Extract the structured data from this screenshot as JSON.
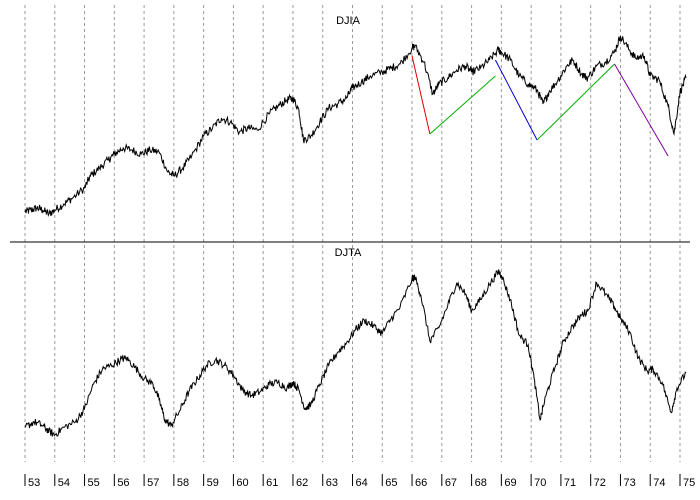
{
  "chart_data": [
    {
      "type": "line",
      "title": "DJIA",
      "x_unit": "year",
      "xlim": [
        1953,
        1975
      ],
      "ylim": [
        0,
        100
      ],
      "series": [
        {
          "values": [
            [
              1953.0,
              9
            ],
            [
              1953.2,
              10
            ],
            [
              1953.4,
              11
            ],
            [
              1953.6,
              10
            ],
            [
              1953.8,
              8
            ],
            [
              1954.0,
              10
            ],
            [
              1954.3,
              13
            ],
            [
              1954.6,
              16
            ],
            [
              1955.0,
              21
            ],
            [
              1955.2,
              27
            ],
            [
              1955.5,
              31
            ],
            [
              1955.8,
              35
            ],
            [
              1956.0,
              38
            ],
            [
              1956.3,
              41
            ],
            [
              1956.6,
              40
            ],
            [
              1956.9,
              38
            ],
            [
              1957.2,
              40
            ],
            [
              1957.5,
              39
            ],
            [
              1957.8,
              29
            ],
            [
              1958.0,
              27
            ],
            [
              1958.3,
              31
            ],
            [
              1958.6,
              37
            ],
            [
              1959.0,
              47
            ],
            [
              1959.3,
              51
            ],
            [
              1959.6,
              56
            ],
            [
              1959.9,
              54
            ],
            [
              1960.2,
              49
            ],
            [
              1960.5,
              51
            ],
            [
              1960.8,
              50
            ],
            [
              1961.2,
              58
            ],
            [
              1961.5,
              62
            ],
            [
              1961.8,
              65
            ],
            [
              1962.0,
              66
            ],
            [
              1962.2,
              60
            ],
            [
              1962.35,
              45
            ],
            [
              1962.6,
              47
            ],
            [
              1962.9,
              54
            ],
            [
              1963.2,
              61
            ],
            [
              1963.5,
              63
            ],
            [
              1963.8,
              66
            ],
            [
              1964.0,
              71
            ],
            [
              1964.3,
              74
            ],
            [
              1964.6,
              77
            ],
            [
              1965.0,
              79
            ],
            [
              1965.3,
              81
            ],
            [
              1965.6,
              83
            ],
            [
              1966.0,
              91
            ],
            [
              1966.1,
              92
            ],
            [
              1966.4,
              84
            ],
            [
              1966.7,
              68
            ],
            [
              1966.9,
              73
            ],
            [
              1967.2,
              76
            ],
            [
              1967.5,
              80
            ],
            [
              1967.8,
              82
            ],
            [
              1968.0,
              79
            ],
            [
              1968.3,
              81
            ],
            [
              1968.6,
              85
            ],
            [
              1968.9,
              90
            ],
            [
              1969.0,
              89
            ],
            [
              1969.3,
              85
            ],
            [
              1969.6,
              77
            ],
            [
              1969.9,
              73
            ],
            [
              1970.2,
              70
            ],
            [
              1970.4,
              63
            ],
            [
              1970.6,
              69
            ],
            [
              1970.9,
              75
            ],
            [
              1971.2,
              82
            ],
            [
              1971.4,
              85
            ],
            [
              1971.7,
              78
            ],
            [
              1971.9,
              76
            ],
            [
              1972.2,
              82
            ],
            [
              1972.5,
              84
            ],
            [
              1972.8,
              89
            ],
            [
              1973.0,
              97
            ],
            [
              1973.3,
              90
            ],
            [
              1973.5,
              86
            ],
            [
              1973.8,
              87
            ],
            [
              1974.0,
              77
            ],
            [
              1974.3,
              75
            ],
            [
              1974.6,
              62
            ],
            [
              1974.8,
              48
            ],
            [
              1975.0,
              69
            ],
            [
              1975.2,
              76
            ]
          ]
        }
      ],
      "trendlines": [
        {
          "color": "#e00000",
          "from": [
            1966.0,
            87
          ],
          "to": [
            1966.6,
            48
          ]
        },
        {
          "color": "#00b000",
          "from": [
            1966.6,
            48
          ],
          "to": [
            1968.8,
            77
          ]
        },
        {
          "color": "#0000d0",
          "from": [
            1968.8,
            85
          ],
          "to": [
            1970.2,
            45
          ]
        },
        {
          "color": "#00b000",
          "from": [
            1970.2,
            45
          ],
          "to": [
            1972.8,
            83
          ]
        },
        {
          "color": "#8000a0",
          "from": [
            1972.8,
            83
          ],
          "to": [
            1974.6,
            37
          ]
        }
      ]
    },
    {
      "type": "line",
      "title": "DJTA",
      "x_unit": "year",
      "xlim": [
        1953,
        1975
      ],
      "ylim": [
        0,
        100
      ],
      "series": [
        {
          "values": [
            [
              1953.0,
              12
            ],
            [
              1953.3,
              15
            ],
            [
              1953.6,
              13
            ],
            [
              1953.8,
              10
            ],
            [
              1954.0,
              8
            ],
            [
              1954.3,
              12
            ],
            [
              1954.7,
              15
            ],
            [
              1955.0,
              22
            ],
            [
              1955.3,
              35
            ],
            [
              1955.6,
              43
            ],
            [
              1955.9,
              45
            ],
            [
              1956.2,
              48
            ],
            [
              1956.4,
              49
            ],
            [
              1956.7,
              44
            ],
            [
              1957.0,
              38
            ],
            [
              1957.3,
              35
            ],
            [
              1957.5,
              27
            ],
            [
              1957.7,
              16
            ],
            [
              1957.9,
              13
            ],
            [
              1958.2,
              21
            ],
            [
              1958.5,
              31
            ],
            [
              1958.8,
              38
            ],
            [
              1959.1,
              45
            ],
            [
              1959.4,
              48
            ],
            [
              1959.7,
              45
            ],
            [
              1960.0,
              40
            ],
            [
              1960.3,
              32
            ],
            [
              1960.6,
              29
            ],
            [
              1960.9,
              31
            ],
            [
              1961.2,
              35
            ],
            [
              1961.5,
              36
            ],
            [
              1961.8,
              33
            ],
            [
              1962.0,
              36
            ],
            [
              1962.2,
              32
            ],
            [
              1962.4,
              22
            ],
            [
              1962.6,
              24
            ],
            [
              1962.9,
              35
            ],
            [
              1963.2,
              45
            ],
            [
              1963.5,
              52
            ],
            [
              1963.8,
              57
            ],
            [
              1964.1,
              64
            ],
            [
              1964.4,
              69
            ],
            [
              1964.7,
              66
            ],
            [
              1965.0,
              62
            ],
            [
              1965.3,
              70
            ],
            [
              1965.6,
              76
            ],
            [
              1966.0,
              91
            ],
            [
              1966.1,
              92
            ],
            [
              1966.3,
              82
            ],
            [
              1966.6,
              58
            ],
            [
              1966.9,
              65
            ],
            [
              1967.2,
              77
            ],
            [
              1967.5,
              89
            ],
            [
              1967.8,
              83
            ],
            [
              1968.0,
              74
            ],
            [
              1968.3,
              80
            ],
            [
              1968.6,
              88
            ],
            [
              1968.9,
              95
            ],
            [
              1969.0,
              93
            ],
            [
              1969.3,
              80
            ],
            [
              1969.6,
              61
            ],
            [
              1969.9,
              56
            ],
            [
              1970.1,
              38
            ],
            [
              1970.3,
              16
            ],
            [
              1970.5,
              29
            ],
            [
              1970.8,
              44
            ],
            [
              1971.1,
              58
            ],
            [
              1971.4,
              66
            ],
            [
              1971.7,
              72
            ],
            [
              1971.9,
              74
            ],
            [
              1972.2,
              89
            ],
            [
              1972.5,
              83
            ],
            [
              1972.8,
              76
            ],
            [
              1973.0,
              70
            ],
            [
              1973.3,
              63
            ],
            [
              1973.6,
              49
            ],
            [
              1973.9,
              42
            ],
            [
              1974.1,
              43
            ],
            [
              1974.4,
              36
            ],
            [
              1974.7,
              20
            ],
            [
              1974.9,
              33
            ],
            [
              1975.2,
              41
            ]
          ]
        }
      ]
    }
  ],
  "x_tick_labels": [
    "53",
    "54",
    "55",
    "56",
    "57",
    "58",
    "59",
    "60",
    "61",
    "62",
    "63",
    "64",
    "65",
    "66",
    "67",
    "68",
    "69",
    "70",
    "71",
    "72",
    "73",
    "74",
    "75"
  ]
}
